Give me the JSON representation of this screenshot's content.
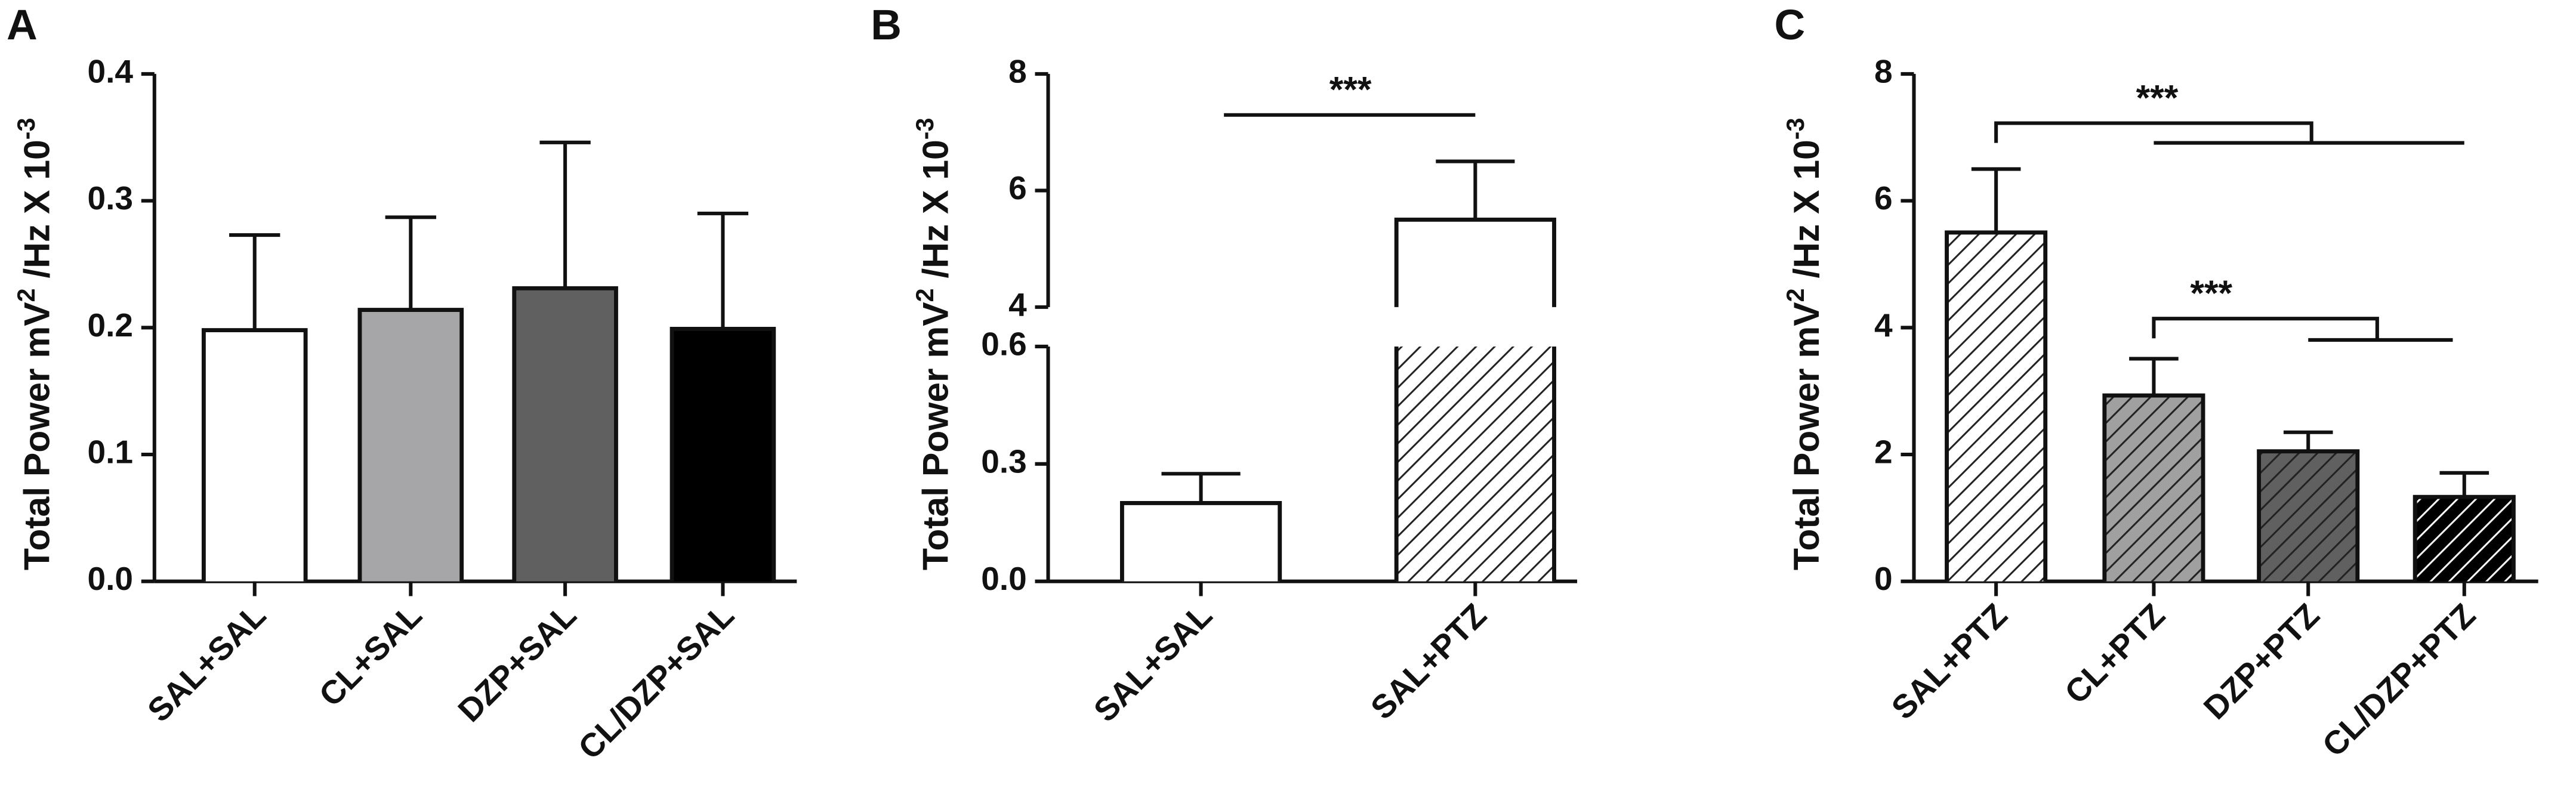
{
  "chart_data": [
    {
      "type": "bar",
      "panel": "A",
      "ylabel": [
        "Total Power mV",
        "2",
        " /Hz X 10",
        "-3"
      ],
      "categories": [
        "SAL+SAL",
        "CL+SAL",
        "DZP+SAL",
        "CL/DZP+SAL"
      ],
      "values": [
        0.198,
        0.214,
        0.231,
        0.199
      ],
      "errors": [
        0.075,
        0.073,
        0.115,
        0.091
      ],
      "colors": [
        "#ffffff",
        "#a6a6a8",
        "#606060",
        "#000000"
      ],
      "hatch": false,
      "ylim": [
        0,
        0.4
      ],
      "yticks": [
        {
          "value": 0,
          "label": "0.0"
        },
        0.1,
        0.2,
        0.3,
        0.4
      ],
      "annotations": []
    },
    {
      "type": "bar",
      "panel": "B",
      "ylabel": [
        "Total Power mV",
        "2",
        " /Hz X 10",
        "-3"
      ],
      "categories": [
        "SAL+SAL",
        "SAL+PTZ"
      ],
      "values": [
        0.2,
        5.5
      ],
      "errors": [
        0.075,
        1.0
      ],
      "colors": [
        "#ffffff",
        "#ffffff"
      ],
      "hatch": [
        false,
        true
      ],
      "hatch_colors": [
        "#222222",
        "#222222"
      ],
      "ylim": [
        0,
        8
      ],
      "axis_break": [
        0.6,
        4
      ],
      "yticks": [
        {
          "value": 0,
          "label": "0.0"
        },
        0.3,
        0.6,
        4,
        6,
        8
      ],
      "annotations": [
        "***"
      ]
    },
    {
      "type": "bar",
      "panel": "C",
      "ylabel": [
        "Total Power mV",
        "2",
        " /Hz X 10",
        "-3"
      ],
      "categories": [
        "SAL+PTZ",
        "CL+PTZ",
        "DZP+PTZ",
        "CL/DZP+PTZ"
      ],
      "values": [
        5.5,
        2.93,
        2.05,
        1.33
      ],
      "errors": [
        1.0,
        0.58,
        0.3,
        0.38
      ],
      "colors": [
        "#ffffff",
        "#a0a0a0",
        "#606060",
        "#000000"
      ],
      "hatch": [
        true,
        true,
        true,
        true
      ],
      "hatch_colors": [
        "#222222",
        "#222222",
        "#222222",
        "#ffffff"
      ],
      "ylim": [
        0,
        8
      ],
      "yticks": [
        0,
        2,
        4,
        6,
        8
      ],
      "annotations": [
        "***",
        "***"
      ]
    }
  ]
}
